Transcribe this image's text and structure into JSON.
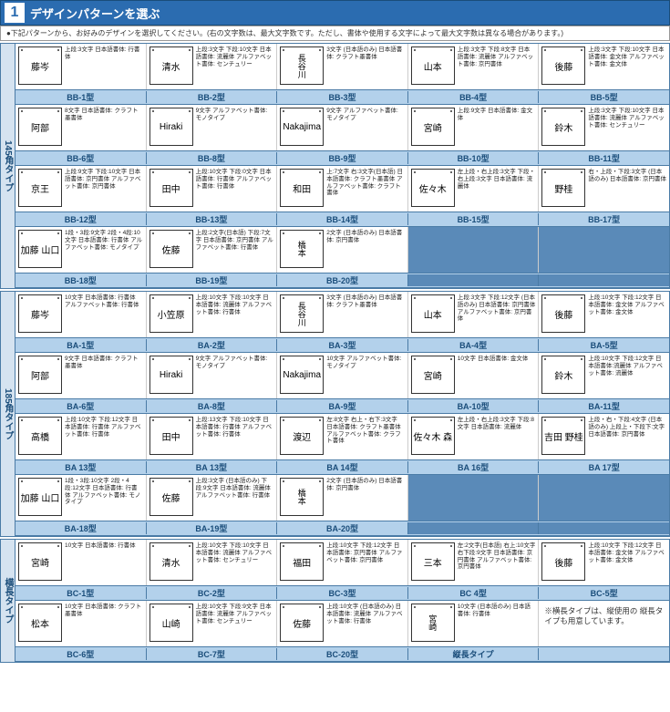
{
  "header": {
    "num": "1",
    "title": "デザインパターンを選ぶ",
    "sub": "●下記パターンから、お好みのデザインを選択してください。(右の文字数は、最大文字数です。ただし、書体や使用する文字によって最大文字数は異なる場合があります。)"
  },
  "sections": [
    {
      "label": "145角タイプ",
      "rows": [
        {
          "cells": [
            {
              "id": "BB-1型",
              "sample": "藤岑",
              "spec": "上段:3文字\n日本語書体:\n行書体"
            },
            {
              "id": "BB-2型",
              "sample": "清水",
              "spec": "上段:3文字\n下段:10文字\n日本語書体:\n流麗体\nアルファベット書体:\nセンチュリー"
            },
            {
              "id": "BB-3型",
              "sample": "長谷川",
              "spec": "3文字\n(日本語のみ)\n日本語書体:\nクラフト墨書体",
              "vert": true
            },
            {
              "id": "BB-4型",
              "sample": "山本",
              "spec": "上段:3文字\n下段:8文字\n日本語書体:\n流麗体\nアルファベット書体:\n京円書体"
            },
            {
              "id": "BB-5型",
              "sample": "後藤",
              "spec": "上段:3文字\n下段:10文字\n日本語書体:\n金文体\nアルファベット書体:\n金文体"
            }
          ]
        },
        {
          "cells": [
            {
              "id": "BB-6型",
              "sample": "阿部",
              "spec": "8文字\n日本語書体:\nクラフト墨書体"
            },
            {
              "id": "BB-8型",
              "sample": "Hiraki",
              "spec": "9文字\nアルファベット書体:\nモノタイプ"
            },
            {
              "id": "BB-9型",
              "sample": "Nakajima",
              "spec": "9文字\nアルファベット書体:\nモノタイプ"
            },
            {
              "id": "BB-10型",
              "sample": "宮崎",
              "spec": "上段:9文字\n日本語書体:\n金文体"
            },
            {
              "id": "BB-11型",
              "sample": "鈴木",
              "spec": "上段:3文字\n下段:10文字\n日本語書体:\n流麗体\nアルファベット書体:\nセンチュリー"
            }
          ]
        },
        {
          "cells": [
            {
              "id": "BB-12型",
              "sample": "京王",
              "spec": "上段:9文字\n下段:10文字\n日本語書体:\n京円書体\nアルファベット書体:\n京円書体"
            },
            {
              "id": "BB-13型",
              "sample": "田中",
              "spec": "上段:10文字\n下段:0文字\n日本語書体:\n行書体\nアルファベット書体:\n行書体"
            },
            {
              "id": "BB-14型",
              "sample": "和田",
              "spec": "上:7文字\n右:3文字(日本語)\n日本語書体:\nクラフト墨書体\nアルファベット書体:\nクラフト書体"
            },
            {
              "id": "BB-15型",
              "sample": "佐々木",
              "spec": "左上段・右上段:3文字\n下段・右上段:3文字\n日本語書体:\n流麗体"
            },
            {
              "id": "BB-17型",
              "sample": "野桂",
              "spec": "右・上段・下段:3文字\n(日本語のみ)\n日本語書体:\n京円書体"
            }
          ]
        },
        {
          "cells": [
            {
              "id": "BB-18型",
              "sample": "加藤 山口",
              "spec": "1段・3段:9文字\n2段・4段:10文字\n日本語書体:\n行書体\nアルファベット書体:\nモノタイプ"
            },
            {
              "id": "BB-19型",
              "sample": "佐藤",
              "spec": "上段:2文字(日本語)\n下段:7文字\n日本語書体:\n京円書体\nアルファベット書体:\n行書体"
            },
            {
              "id": "BB-20型",
              "sample": "橋本",
              "spec": "2文字\n(日本語のみ)\n日本語書体:\n京円書体",
              "vert": true
            },
            {
              "id": "",
              "sample": "",
              "spec": "",
              "empty": true
            },
            {
              "id": "",
              "sample": "",
              "spec": "",
              "empty": true
            }
          ]
        }
      ]
    },
    {
      "label": "185角タイプ",
      "rows": [
        {
          "cells": [
            {
              "id": "BA-1型",
              "sample": "藤岑",
              "spec": "10文字\n日本語書体:\n行書体\nアルファベット書体:\n行書体"
            },
            {
              "id": "BA-2型",
              "sample": "小笠原",
              "spec": "上段:10文字\n下段:10文字\n日本語書体:\n流麗体\nアルファベット書体:\n行書体"
            },
            {
              "id": "BA-3型",
              "sample": "長谷川",
              "spec": "3文字\n(日本語のみ)\n日本語書体:\nクラフト墨書体",
              "vert": true
            },
            {
              "id": "BA-4型",
              "sample": "山本",
              "spec": "上段:3文字\n下段:12文字\n(日本語のみ)\n日本語書体:\n京円書体\nアルファベット書体:\n京円書体"
            },
            {
              "id": "BA-5型",
              "sample": "後藤",
              "spec": "上段:10文字\n下段:12文字\n日本語書体:\n金文体\nアルファベット書体:\n金文体"
            }
          ]
        },
        {
          "cells": [
            {
              "id": "BA-6型",
              "sample": "阿部",
              "spec": "9文字\n日本語書体:\nクラフト墨書体"
            },
            {
              "id": "BA-8型",
              "sample": "Hiraki",
              "spec": "9文字\nアルファベット書体:\nモノタイプ"
            },
            {
              "id": "BA-9型",
              "sample": "Nakajima",
              "spec": "10文字\nアルファベット書体:\nモノタイプ"
            },
            {
              "id": "BA-10型",
              "sample": "宮崎",
              "spec": "10文字\n日本語書体:\n金文体"
            },
            {
              "id": "BA-11型",
              "sample": "鈴木",
              "spec": "上段:10文字\n下段:12文字\n日本語書体:流麗体\nアルファベット書体:\n流麗体"
            }
          ]
        },
        {
          "cells": [
            {
              "id": "BA 13型",
              "sample": "高橋",
              "spec": "上段:10文字\n下段:12文字\n日本語書体:\n行書体\nアルファベット書体:\n行書体"
            },
            {
              "id": "BA 13型",
              "sample": "田中",
              "spec": "上段:13文字\n下段:10文字\n日本語書体:\n行書体\nアルファベット書体:\n行書体"
            },
            {
              "id": "BA 14型",
              "sample": "渡辺",
              "spec": "左:8文字\n右上・右下:3文字\n日本語書体:\nクラフト墨書体\nアルファベット書体:\nクラフト書体"
            },
            {
              "id": "BA 16型",
              "sample": "佐々木 森",
              "spec": "左上段・右上段:3文字\n下段:8文字\n日本語書体:\n流麗体"
            },
            {
              "id": "BA 17型",
              "sample": "吉田 野桂",
              "spec": "上段・右・下段:4文字\n(日本語のみ)\n上段上・下段下:文字\n日本語書体:\n京円書体"
            }
          ]
        },
        {
          "cells": [
            {
              "id": "BA-18型",
              "sample": "加藤 山口",
              "spec": "1段・3段:10文字\n2段・4段:12文字\n日本語書体:\n行書体\nアルファベット書体:\nモノタイプ"
            },
            {
              "id": "BA-19型",
              "sample": "佐藤",
              "spec": "上段:3文字\n(日本語のみ)\n下段:9文字\n日本語書体:\n流麗体\nアルファベット書体:\n行書体"
            },
            {
              "id": "BA-20型",
              "sample": "橋本",
              "spec": "2文字\n(日本語のみ)\n日本語書体:\n京円書体",
              "vert": true
            },
            {
              "id": "",
              "sample": "",
              "spec": "",
              "empty": true
            },
            {
              "id": "",
              "sample": "",
              "spec": "",
              "empty": true
            }
          ]
        }
      ]
    },
    {
      "label": "横長タイプ",
      "rows": [
        {
          "cells": [
            {
              "id": "BC-1型",
              "sample": "宮崎",
              "spec": "10文字\n日本語書体:\n行書体"
            },
            {
              "id": "BC-2型",
              "sample": "清水",
              "spec": "上段:10文字\n下段:10文字\n日本語書体:\n流麗体\nアルファベット書体:\nセンチュリー"
            },
            {
              "id": "BC-3型",
              "sample": "福田",
              "spec": "上段:10文字\n下段:12文字\n日本語書体:\n京円書体\nアルファベット書体:\n京円書体"
            },
            {
              "id": "BC 4型",
              "sample": "三本",
              "spec": "左:2文字(日本語)\n右上:10文字\n右下段:9文字\n日本語書体:\n京円書体\nアルファベット書体:\n京円書体"
            },
            {
              "id": "BC-5型",
              "sample": "後藤",
              "spec": "上段:10文字\n下段:12文字\n日本語書体:\n金文体\nアルファベット書体:\n金文体"
            }
          ]
        },
        {
          "cells": [
            {
              "id": "BC-6型",
              "sample": "松本",
              "spec": "10文字\n日本語書体:\nクラフト墨書体"
            },
            {
              "id": "BC-7型",
              "sample": "山崎",
              "spec": "上段:10文字\n下段:9文字\n日本語書体:\n流麗体\nアルファベット書体:\nセンチュリー"
            },
            {
              "id": "BC-20型",
              "sample": "佐藤",
              "spec": "上段:10文字\n(日本語のみ)\n日本語書体:\n流麗体\nアルファベット書体:\n行書体"
            },
            {
              "id": "縦長タイプ",
              "sample": "宮崎",
              "spec": "10文字\n(日本語のみ)\n日本語書体:\n行書体",
              "vert": true
            },
            {
              "id": "",
              "sample": "",
              "spec": "",
              "note": "※横長タイプは、縦使用の\n縦長タイプも用意しています。"
            }
          ]
        }
      ]
    }
  ]
}
